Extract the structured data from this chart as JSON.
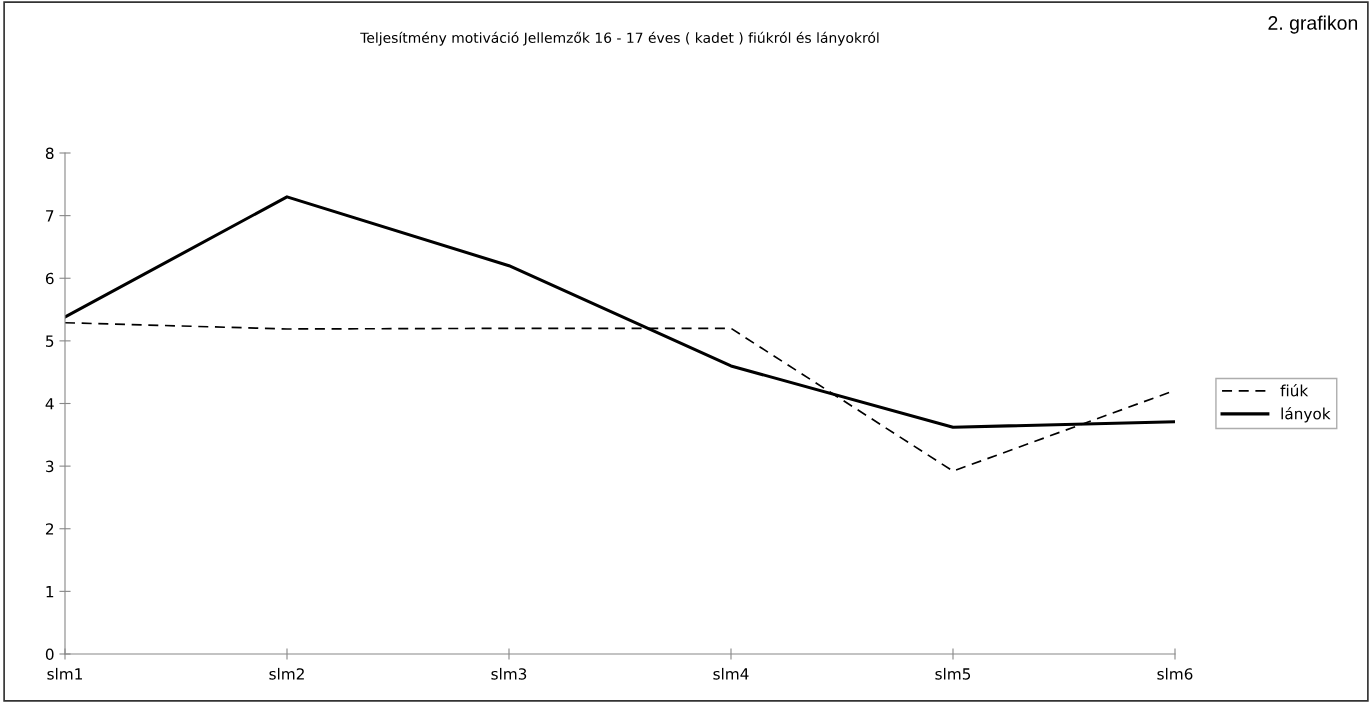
{
  "chart_data": {
    "type": "line",
    "title": "Teljesítmény motiváció Jellemzők 16 - 17 éves ( kadet ) fiúkról és lányokról",
    "annotations": [
      "2. grafikon"
    ],
    "categories": [
      "slm1",
      "slm2",
      "slm3",
      "slm4",
      "slm5",
      "slm6"
    ],
    "series": [
      {
        "name": "fiúk",
        "color": "#000000",
        "line_style": "dashed",
        "values": [
          5.29,
          5.19,
          5.2,
          5.2,
          2.92,
          4.21
        ]
      },
      {
        "name": "lányok",
        "color": "#000000",
        "line_style": "solid",
        "values": [
          5.38,
          7.3,
          6.2,
          4.6,
          3.62,
          3.71
        ]
      }
    ],
    "ylim": [
      0,
      8
    ],
    "yticks": [
      0,
      1,
      2,
      3,
      4,
      5,
      6,
      7,
      8
    ],
    "grid": false,
    "legend": "right",
    "marker": "none"
  }
}
